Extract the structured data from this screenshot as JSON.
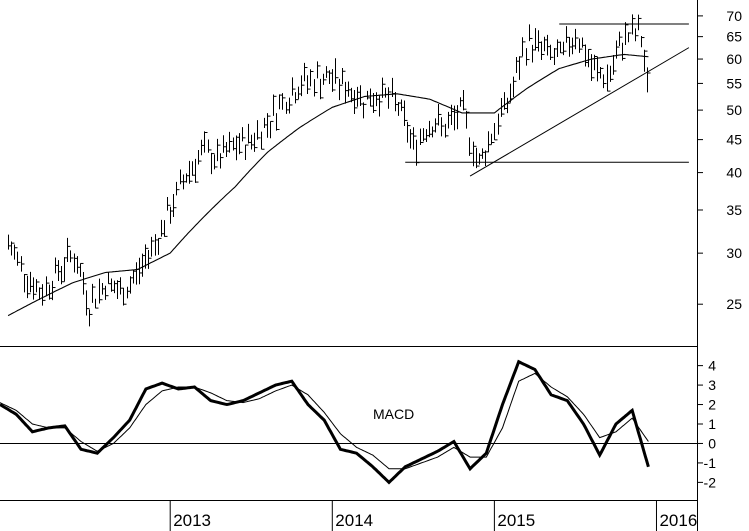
{
  "chart_data": [
    {
      "type": "line",
      "panel": "price",
      "scale": "log",
      "ylim": [
        22,
        72
      ],
      "xlim": [
        2011.95,
        2016.25
      ],
      "y_ticks": [
        25,
        30,
        35,
        40,
        45,
        50,
        55,
        60,
        65,
        70
      ],
      "x_ticks": [
        "2013",
        "2014",
        "2015",
        "2016"
      ],
      "series": [
        {
          "style": "weekly-bars",
          "x": [
            2012.0,
            2012.1,
            2012.2,
            2012.3,
            2012.4,
            2012.5,
            2012.6,
            2012.7,
            2012.8,
            2012.9,
            2013.0,
            2013.1,
            2013.2,
            2013.3,
            2013.4,
            2013.5,
            2013.6,
            2013.7,
            2013.8,
            2013.9,
            2014.0,
            2014.1,
            2014.2,
            2014.3,
            2014.4,
            2014.5,
            2014.6,
            2014.7,
            2014.8,
            2014.9,
            2015.0,
            2015.1,
            2015.2,
            2015.3,
            2015.4,
            2015.5,
            2015.6,
            2015.7,
            2015.8,
            2015.9,
            2015.95
          ],
          "values": [
            31,
            28,
            26,
            28,
            30,
            25,
            27,
            26,
            28,
            31,
            35,
            40,
            43,
            42,
            44,
            45,
            48,
            52,
            55,
            56,
            56,
            54,
            52,
            53,
            51,
            44,
            48,
            47,
            50,
            41,
            47,
            53,
            64,
            62,
            60,
            66,
            58,
            56,
            65,
            66,
            52
          ]
        },
        {
          "style": "moving-average",
          "x": [
            2012.0,
            2012.2,
            2012.4,
            2012.6,
            2012.8,
            2013.0,
            2013.2,
            2013.4,
            2013.6,
            2013.8,
            2014.0,
            2014.2,
            2014.4,
            2014.6,
            2014.8,
            2015.0,
            2015.2,
            2015.4,
            2015.6,
            2015.8,
            2015.95
          ],
          "values": [
            24,
            25.5,
            27,
            28,
            28.3,
            30,
            34,
            38,
            43,
            47,
            50.5,
            52.5,
            53,
            52,
            49.5,
            49.5,
            54,
            58,
            60,
            61,
            60.5
          ]
        }
      ],
      "annotations": [
        {
          "kind": "resistance-line",
          "y": 68,
          "x_from": 2015.4,
          "x_to": 2016.2
        },
        {
          "kind": "support-line",
          "y": 41.5,
          "x_from": 2014.45,
          "x_to": 2016.2
        },
        {
          "kind": "trendline",
          "points": [
            [
              2014.85,
              39.5
            ],
            [
              2016.2,
              62.5
            ]
          ]
        }
      ]
    },
    {
      "type": "line",
      "panel": "indicator",
      "ylim": [
        -2.7,
        4.7
      ],
      "y_ticks": [
        -2,
        -1,
        0,
        1,
        2,
        3,
        4
      ],
      "label": "MACD",
      "series": [
        {
          "style": "macd",
          "x": [
            2011.95,
            2012.05,
            2012.15,
            2012.25,
            2012.35,
            2012.45,
            2012.55,
            2012.65,
            2012.75,
            2012.85,
            2012.95,
            2013.05,
            2013.15,
            2013.25,
            2013.35,
            2013.45,
            2013.55,
            2013.65,
            2013.75,
            2013.85,
            2013.95,
            2014.05,
            2014.15,
            2014.25,
            2014.35,
            2014.45,
            2014.55,
            2014.65,
            2014.75,
            2014.85,
            2014.95,
            2015.05,
            2015.15,
            2015.25,
            2015.35,
            2015.45,
            2015.55,
            2015.65,
            2015.75,
            2015.85,
            2015.95
          ],
          "values": [
            2.0,
            1.5,
            0.6,
            0.8,
            0.9,
            -0.3,
            -0.5,
            0.3,
            1.2,
            2.8,
            3.1,
            2.8,
            2.9,
            2.2,
            2.0,
            2.2,
            2.6,
            3.0,
            3.2,
            2.0,
            1.2,
            -0.3,
            -0.5,
            -1.2,
            -2.0,
            -1.2,
            -0.8,
            -0.4,
            0.1,
            -1.3,
            -0.5,
            2.0,
            4.2,
            3.8,
            2.5,
            2.2,
            1.0,
            -0.6,
            1.0,
            1.7,
            -1.2
          ]
        },
        {
          "style": "signal",
          "x": [
            2011.95,
            2012.05,
            2012.15,
            2012.25,
            2012.35,
            2012.45,
            2012.55,
            2012.65,
            2012.75,
            2012.85,
            2012.95,
            2013.05,
            2013.15,
            2013.25,
            2013.35,
            2013.45,
            2013.55,
            2013.65,
            2013.75,
            2013.85,
            2013.95,
            2014.05,
            2014.15,
            2014.25,
            2014.35,
            2014.45,
            2014.55,
            2014.65,
            2014.75,
            2014.85,
            2014.95,
            2015.05,
            2015.15,
            2015.25,
            2015.35,
            2015.45,
            2015.55,
            2015.65,
            2015.75,
            2015.85,
            2015.95
          ],
          "values": [
            2.1,
            1.7,
            1.0,
            0.8,
            0.8,
            0.1,
            -0.4,
            0.0,
            0.8,
            2.0,
            2.7,
            2.9,
            2.9,
            2.6,
            2.2,
            2.1,
            2.3,
            2.7,
            3.0,
            2.5,
            1.6,
            0.5,
            -0.2,
            -0.6,
            -1.3,
            -1.3,
            -1.0,
            -0.7,
            -0.2,
            -0.7,
            -0.7,
            0.8,
            3.2,
            3.6,
            2.9,
            2.4,
            1.5,
            0.3,
            0.6,
            1.3,
            0.1
          ]
        }
      ]
    }
  ]
}
